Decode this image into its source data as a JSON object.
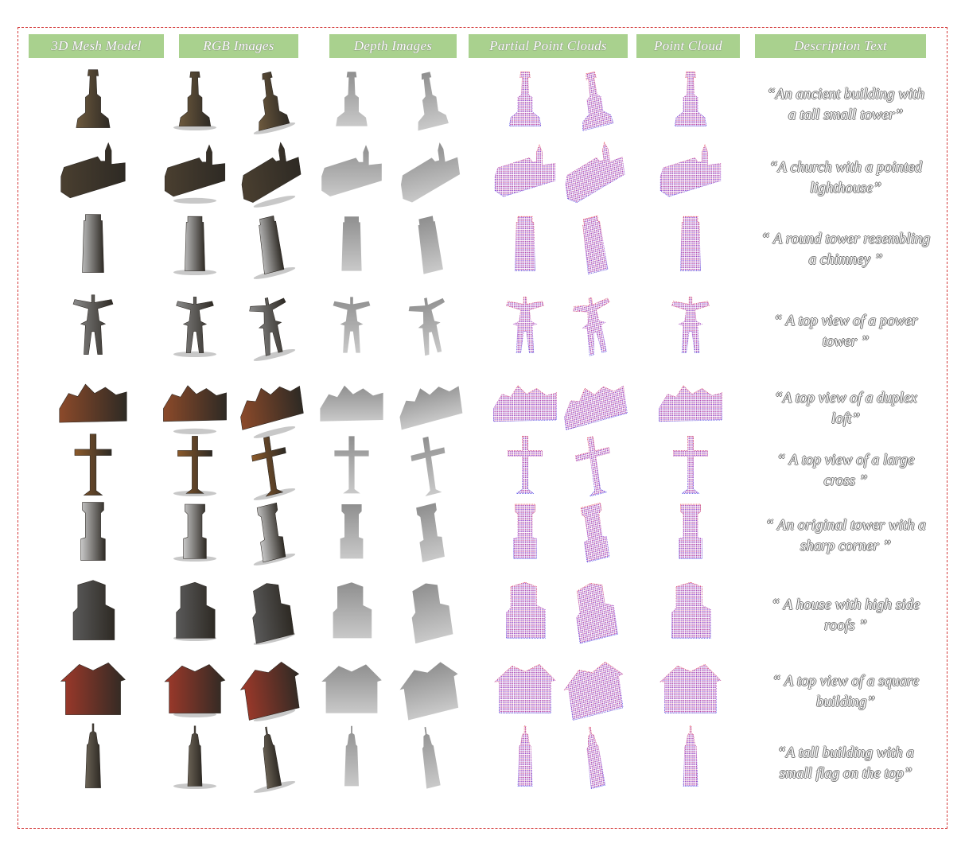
{
  "columns": [
    {
      "id": "mesh",
      "label": "3D Mesh Model"
    },
    {
      "id": "rgb",
      "label": "RGB Images"
    },
    {
      "id": "depth",
      "label": "Depth Images"
    },
    {
      "id": "partial",
      "label": "Partial Point Clouds"
    },
    {
      "id": "cloud",
      "label": "Point Cloud"
    },
    {
      "id": "text",
      "label": "Description Text"
    }
  ],
  "rows": [
    {
      "id": "ancient-building",
      "shape": "tower-ornate",
      "mesh_color": "#6e5a3e",
      "desc_lines": [
        "“An ancient building with",
        "a tall small tower”"
      ]
    },
    {
      "id": "church",
      "shape": "church",
      "mesh_color": "#4a3f30",
      "desc_lines": [
        "“A church with a pointed",
        "lighthouse”"
      ]
    },
    {
      "id": "round-tower",
      "shape": "round-tower",
      "mesh_color": "#b9b9b9",
      "desc_lines": [
        "“ A round tower resembling",
        "a chimney ”"
      ]
    },
    {
      "id": "power-tower",
      "shape": "power-tower",
      "mesh_color": "#8a8a8a",
      "desc_lines": [
        "“ A top view of a power",
        "tower ”"
      ]
    },
    {
      "id": "duplex-loft",
      "shape": "house-wide",
      "mesh_color": "#8c4a2a",
      "desc_lines": [
        "“A top view of a duplex",
        "loft”"
      ]
    },
    {
      "id": "large-cross",
      "shape": "cross",
      "mesh_color": "#8b5a2b",
      "desc_lines": [
        "“ A top view of a large",
        "cross ”"
      ]
    },
    {
      "id": "original-tower",
      "shape": "castle-tower",
      "mesh_color": "#c8c8c8",
      "desc_lines": [
        "“ An original tower with a",
        "sharp corner ”"
      ]
    },
    {
      "id": "high-side-roofs",
      "shape": "tall-house",
      "mesh_color": "#5a5a5a",
      "desc_lines": [
        "“ A house with high side",
        "roofs ”"
      ]
    },
    {
      "id": "square-building",
      "shape": "house-square",
      "mesh_color": "#a0392a",
      "desc_lines": [
        "“ A top view of a square",
        "building”"
      ]
    },
    {
      "id": "tall-building",
      "shape": "skyscraper",
      "mesh_color": "#6b6356",
      "desc_lines": [
        "“A tall building with a",
        "small flag on the top”"
      ]
    }
  ]
}
